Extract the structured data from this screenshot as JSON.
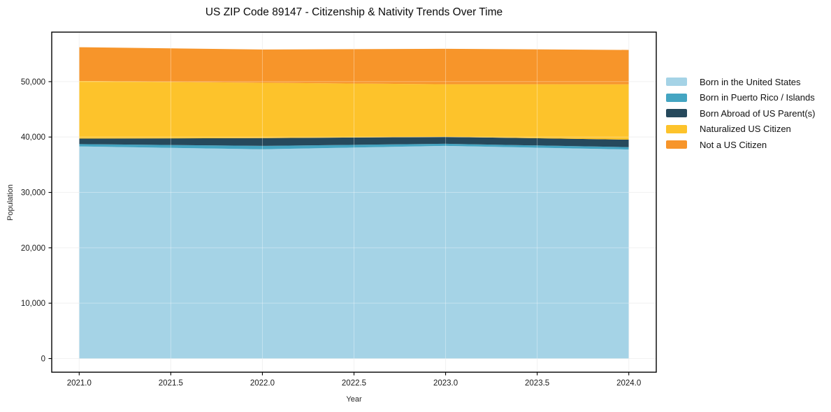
{
  "chart_data": {
    "type": "area",
    "stacked": true,
    "title": "US ZIP Code 89147 - Citizenship & Nativity Trends Over Time",
    "xlabel": "Year",
    "ylabel": "Population",
    "x": [
      2021,
      2022,
      2023,
      2024
    ],
    "series": [
      {
        "name": "Born in the United States",
        "color": "#a5d3e6",
        "values": [
          38300,
          37800,
          38400,
          37750
        ]
      },
      {
        "name": "Born in Puerto Rico / Islands",
        "color": "#44a5c2",
        "values": [
          420,
          600,
          380,
          420
        ]
      },
      {
        "name": "Born Abroad of US Parent(s)",
        "color": "#26495c",
        "values": [
          1000,
          1400,
          1250,
          1350
        ]
      },
      {
        "name": "Naturalized US Citizen",
        "color": "#fdc32b",
        "values": [
          10400,
          10000,
          9500,
          10000
        ]
      },
      {
        "name": "Not a US Citizen",
        "color": "#f7952a",
        "values": [
          6100,
          6000,
          6400,
          6200
        ]
      }
    ],
    "stack_totals": [
      56220,
      55800,
      55930,
      55720
    ],
    "xlim": [
      2020.85,
      2024.15
    ],
    "ylim": [
      -2460,
      58940
    ],
    "xticks": {
      "values": [
        2021.0,
        2021.5,
        2022.0,
        2022.5,
        2023.0,
        2023.5,
        2024.0
      ],
      "labels": [
        "2021.0",
        "2021.5",
        "2022.0",
        "2022.5",
        "2023.0",
        "2023.5",
        "2024.0"
      ]
    },
    "yticks": {
      "values": [
        0,
        10000,
        20000,
        30000,
        40000,
        50000
      ],
      "labels": [
        "0",
        "10,000",
        "20,000",
        "30,000",
        "40,000",
        "50,000"
      ]
    },
    "grid": true,
    "legend_position": "right-outside"
  },
  "colors": {
    "background": "#ffffff",
    "frame": "#000000",
    "grid_under": "rgba(0,0,0,0.08)",
    "grid_over": "rgba(255,255,255,0.35)",
    "tick_text": "#1a1a1a"
  }
}
